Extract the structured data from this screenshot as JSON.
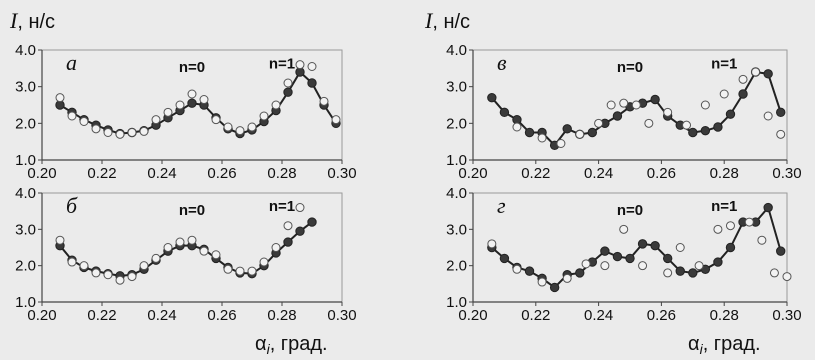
{
  "figure": {
    "y_axis_label_main": "I",
    "y_axis_label_unit": ", н/с",
    "x_axis_label_main": "α",
    "x_axis_label_sub": "i",
    "x_axis_label_unit": ", град."
  },
  "chart_data": [
    {
      "type": "scatter",
      "panel": "а",
      "xlim": [
        0.2,
        0.3
      ],
      "ylim": [
        1.0,
        4.0
      ],
      "xticks": [
        "0.20",
        "0.22",
        "0.24",
        "0.26",
        "0.28",
        "0.30"
      ],
      "yticks": [
        "1.0",
        "2.0",
        "3.0",
        "4.0"
      ],
      "grid": false,
      "annotations": [
        {
          "text": "n=0",
          "x": 0.25,
          "y": 3.4
        },
        {
          "text": "n=1",
          "x": 0.28,
          "y": 3.5
        }
      ],
      "series": [
        {
          "style": "filled-line",
          "x": [
            0.206,
            0.21,
            0.214,
            0.218,
            0.222,
            0.226,
            0.23,
            0.234,
            0.238,
            0.242,
            0.246,
            0.25,
            0.254,
            0.258,
            0.262,
            0.266,
            0.27,
            0.274,
            0.278,
            0.282,
            0.286,
            0.29,
            0.294,
            0.298
          ],
          "y": [
            2.5,
            2.3,
            2.1,
            1.95,
            1.82,
            1.72,
            1.75,
            1.8,
            1.95,
            2.15,
            2.35,
            2.55,
            2.5,
            2.15,
            1.85,
            1.72,
            1.82,
            2.05,
            2.35,
            2.85,
            3.4,
            3.1,
            2.5,
            2.0
          ]
        },
        {
          "style": "open",
          "x": [
            0.206,
            0.21,
            0.214,
            0.218,
            0.222,
            0.226,
            0.23,
            0.234,
            0.238,
            0.242,
            0.246,
            0.25,
            0.254,
            0.258,
            0.262,
            0.266,
            0.27,
            0.274,
            0.278,
            0.282,
            0.286,
            0.29,
            0.294,
            0.298
          ],
          "y": [
            2.7,
            2.2,
            2.05,
            1.85,
            1.75,
            1.7,
            1.75,
            1.78,
            2.1,
            2.3,
            2.5,
            2.8,
            2.65,
            2.1,
            1.9,
            1.8,
            1.9,
            2.2,
            2.5,
            3.1,
            3.6,
            3.55,
            2.6,
            2.1
          ]
        }
      ]
    },
    {
      "type": "scatter",
      "panel": "б",
      "xlim": [
        0.2,
        0.3
      ],
      "ylim": [
        1.0,
        4.0
      ],
      "xticks": [
        "0.20",
        "0.22",
        "0.24",
        "0.26",
        "0.28",
        "0.30"
      ],
      "yticks": [
        "1.0",
        "2.0",
        "3.0",
        "4.0"
      ],
      "grid": false,
      "annotations": [
        {
          "text": "n=0",
          "x": 0.25,
          "y": 3.4
        },
        {
          "text": "n=1",
          "x": 0.28,
          "y": 3.5
        }
      ],
      "series": [
        {
          "style": "filled-line",
          "x": [
            0.206,
            0.21,
            0.214,
            0.218,
            0.222,
            0.226,
            0.23,
            0.234,
            0.238,
            0.242,
            0.246,
            0.25,
            0.254,
            0.258,
            0.262,
            0.266,
            0.27,
            0.274,
            0.278,
            0.282,
            0.286,
            0.29
          ],
          "y": [
            2.55,
            2.15,
            1.95,
            1.85,
            1.78,
            1.72,
            1.75,
            1.9,
            2.15,
            2.4,
            2.55,
            2.55,
            2.45,
            2.2,
            1.95,
            1.8,
            1.78,
            2.0,
            2.35,
            2.65,
            2.95,
            3.2
          ]
        },
        {
          "style": "open",
          "x": [
            0.206,
            0.21,
            0.214,
            0.218,
            0.222,
            0.226,
            0.23,
            0.234,
            0.238,
            0.242,
            0.246,
            0.25,
            0.254,
            0.258,
            0.262,
            0.266,
            0.27,
            0.274,
            0.278,
            0.282,
            0.286
          ],
          "y": [
            2.7,
            2.1,
            2.0,
            1.8,
            1.75,
            1.6,
            1.7,
            2.0,
            2.2,
            2.5,
            2.65,
            2.7,
            2.4,
            2.3,
            1.9,
            1.85,
            1.85,
            2.1,
            2.5,
            3.1,
            3.6
          ]
        }
      ]
    },
    {
      "type": "scatter",
      "panel": "в",
      "xlim": [
        0.2,
        0.3
      ],
      "ylim": [
        1.0,
        4.0
      ],
      "xticks": [
        "0.20",
        "0.22",
        "0.24",
        "0.26",
        "0.28",
        "0.30"
      ],
      "yticks": [
        "1.0",
        "2.0",
        "3.0",
        "4.0"
      ],
      "grid": false,
      "annotations": [
        {
          "text": "n=0",
          "x": 0.25,
          "y": 3.4
        },
        {
          "text": "n=1",
          "x": 0.28,
          "y": 3.5
        }
      ],
      "series": [
        {
          "style": "filled-line",
          "x": [
            0.206,
            0.21,
            0.214,
            0.218,
            0.222,
            0.226,
            0.23,
            0.234,
            0.238,
            0.242,
            0.246,
            0.25,
            0.254,
            0.258,
            0.262,
            0.266,
            0.27,
            0.274,
            0.278,
            0.282,
            0.286,
            0.29,
            0.294,
            0.298
          ],
          "y": [
            2.7,
            2.3,
            2.1,
            1.75,
            1.75,
            1.4,
            1.85,
            1.7,
            1.75,
            2.0,
            2.2,
            2.45,
            2.55,
            2.65,
            2.2,
            1.95,
            1.75,
            1.8,
            1.9,
            2.25,
            2.8,
            3.4,
            3.35,
            2.3
          ]
        },
        {
          "style": "open",
          "x": [
            0.214,
            0.222,
            0.228,
            0.234,
            0.24,
            0.244,
            0.248,
            0.252,
            0.256,
            0.262,
            0.268,
            0.274,
            0.28,
            0.286,
            0.29,
            0.294,
            0.298
          ],
          "y": [
            1.9,
            1.6,
            1.45,
            1.7,
            2.0,
            2.5,
            2.55,
            2.5,
            2.0,
            2.3,
            1.95,
            2.5,
            2.8,
            3.2,
            3.4,
            2.2,
            1.7
          ]
        }
      ]
    },
    {
      "type": "scatter",
      "panel": "г",
      "xlim": [
        0.2,
        0.3
      ],
      "ylim": [
        1.0,
        4.0
      ],
      "xticks": [
        "0.20",
        "0.22",
        "0.24",
        "0.26",
        "0.28",
        "0.30"
      ],
      "yticks": [
        "1.0",
        "2.0",
        "3.0",
        "4.0"
      ],
      "grid": false,
      "annotations": [
        {
          "text": "n=0",
          "x": 0.25,
          "y": 3.4
        },
        {
          "text": "n=1",
          "x": 0.28,
          "y": 3.5
        }
      ],
      "series": [
        {
          "style": "filled-line",
          "x": [
            0.206,
            0.21,
            0.214,
            0.218,
            0.222,
            0.226,
            0.23,
            0.234,
            0.238,
            0.242,
            0.246,
            0.25,
            0.254,
            0.258,
            0.262,
            0.266,
            0.27,
            0.274,
            0.278,
            0.282,
            0.286,
            0.29,
            0.294,
            0.298
          ],
          "y": [
            2.5,
            2.2,
            1.95,
            1.85,
            1.65,
            1.4,
            1.75,
            1.8,
            2.1,
            2.4,
            2.25,
            2.2,
            2.6,
            2.55,
            2.2,
            1.85,
            1.8,
            1.9,
            2.1,
            2.5,
            3.2,
            3.2,
            3.6,
            2.4
          ]
        },
        {
          "style": "open",
          "x": [
            0.206,
            0.214,
            0.222,
            0.23,
            0.236,
            0.242,
            0.248,
            0.254,
            0.262,
            0.266,
            0.272,
            0.278,
            0.282,
            0.288,
            0.292,
            0.296,
            0.3
          ],
          "y": [
            2.6,
            1.9,
            1.55,
            1.65,
            2.05,
            2.0,
            3.0,
            2.0,
            1.8,
            2.5,
            2.0,
            3.0,
            3.1,
            3.2,
            2.7,
            1.8,
            1.7
          ]
        }
      ]
    }
  ]
}
